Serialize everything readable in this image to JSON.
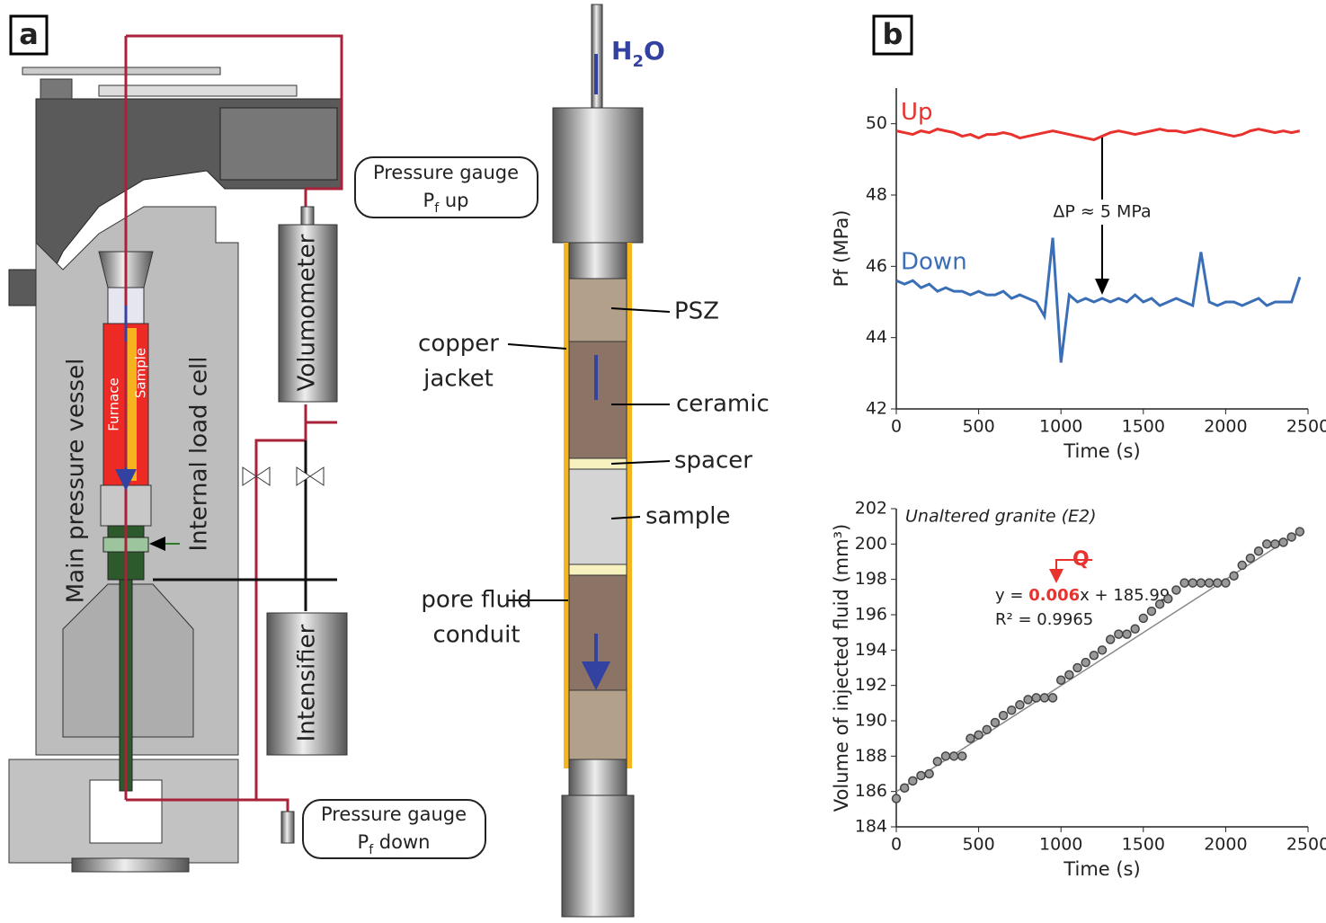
{
  "panels": {
    "a": "a",
    "b": "b"
  },
  "diagram": {
    "gauge_up": {
      "title": "Pressure gauge",
      "main": "P",
      "sub": "f",
      "rest": " up"
    },
    "gauge_down": {
      "title": "Pressure gauge",
      "main": "P",
      "sub": "f",
      "rest": " down"
    },
    "volumometer": "Volumometer",
    "intensifier": "Intensifier",
    "main_vessel": "Main pressure vessel",
    "load_cell": "Internal load cell",
    "furnace": "Furnace",
    "sample_small": "Sample",
    "water": {
      "main": "H",
      "sub": "2",
      "rest": "O"
    },
    "psz": "PSZ",
    "copper_jacket": [
      "copper",
      "jacket"
    ],
    "ceramic": "ceramic",
    "spacer": "spacer",
    "sample": "sample",
    "pore_fluid": [
      "pore fluid",
      "conduit"
    ]
  },
  "chart_data": [
    {
      "type": "line",
      "ylabel": "Pf (MPa)",
      "xlabel": "Time (s)",
      "annotation": "ΔP ≈ 5 MPa",
      "x": [
        0,
        50,
        100,
        150,
        200,
        250,
        300,
        350,
        400,
        450,
        500,
        550,
        600,
        650,
        700,
        750,
        800,
        850,
        900,
        950,
        1000,
        1050,
        1100,
        1150,
        1200,
        1250,
        1300,
        1350,
        1400,
        1450,
        1500,
        1550,
        1600,
        1650,
        1700,
        1750,
        1800,
        1850,
        1900,
        1950,
        2000,
        2050,
        2100,
        2150,
        2200,
        2250,
        2300,
        2350,
        2400,
        2450
      ],
      "series": [
        {
          "name": "Up",
          "color": "#e8322e",
          "values": [
            49.8,
            49.75,
            49.7,
            49.8,
            49.75,
            49.85,
            49.8,
            49.75,
            49.65,
            49.7,
            49.6,
            49.7,
            49.7,
            49.75,
            49.7,
            49.6,
            49.65,
            49.7,
            49.75,
            49.8,
            49.75,
            49.7,
            49.65,
            49.6,
            49.55,
            49.65,
            49.75,
            49.8,
            49.75,
            49.7,
            49.75,
            49.8,
            49.85,
            49.8,
            49.8,
            49.75,
            49.8,
            49.85,
            49.8,
            49.75,
            49.7,
            49.65,
            49.7,
            49.8,
            49.85,
            49.8,
            49.75,
            49.8,
            49.75,
            49.8
          ]
        },
        {
          "name": "Down",
          "color": "#3a6fb7",
          "values": [
            45.6,
            45.5,
            45.6,
            45.4,
            45.5,
            45.3,
            45.4,
            45.3,
            45.3,
            45.2,
            45.3,
            45.2,
            45.2,
            45.3,
            45.1,
            45.2,
            45.1,
            45.0,
            44.6,
            46.8,
            43.3,
            45.2,
            45.0,
            45.1,
            45.0,
            45.1,
            45.0,
            45.1,
            45.0,
            45.2,
            45.0,
            45.1,
            44.9,
            45.0,
            45.1,
            45.0,
            44.9,
            46.4,
            45.0,
            44.9,
            45.0,
            45.0,
            44.9,
            45.0,
            45.1,
            44.9,
            45.0,
            45.0,
            45.0,
            45.7
          ]
        }
      ],
      "xlim": [
        0,
        2500
      ],
      "xticks": [
        0,
        500,
        1000,
        1500,
        2000,
        2500
      ],
      "ylim": [
        42,
        51
      ],
      "yticks": [
        42,
        44,
        46,
        48,
        50
      ]
    },
    {
      "type": "scatter",
      "ylabel": "Volume of injected fluid (mm³)",
      "xlabel": "Time (s)",
      "annotation": "Unaltered granite (E2)",
      "q_label": "Q",
      "color": "#444444",
      "x": [
        0,
        50,
        100,
        150,
        200,
        250,
        300,
        350,
        400,
        450,
        500,
        550,
        600,
        650,
        700,
        750,
        800,
        850,
        900,
        950,
        1000,
        1050,
        1100,
        1150,
        1200,
        1250,
        1300,
        1350,
        1400,
        1450,
        1500,
        1550,
        1600,
        1650,
        1700,
        1750,
        1800,
        1850,
        1900,
        1950,
        2000,
        2050,
        2100,
        2150,
        2200,
        2250,
        2300,
        2350,
        2400,
        2450
      ],
      "values": [
        185.6,
        186.2,
        186.6,
        186.9,
        187.0,
        187.7,
        188.0,
        188.0,
        188.0,
        189.0,
        189.2,
        189.5,
        189.9,
        190.3,
        190.6,
        190.9,
        191.2,
        191.3,
        191.3,
        191.3,
        192.3,
        192.6,
        193.0,
        193.3,
        193.7,
        194.0,
        194.6,
        194.9,
        194.9,
        195.2,
        195.8,
        196.2,
        196.6,
        196.9,
        197.4,
        197.8,
        197.8,
        197.8,
        197.8,
        197.8,
        197.8,
        198.2,
        198.8,
        199.2,
        199.6,
        200.0,
        200.0,
        200.1,
        200.4,
        200.7
      ],
      "trendline": {
        "slope": 0.006,
        "intercept": 185.99,
        "equation_parts": [
          "y = ",
          "x + "
        ],
        "r2_label": "R² = 0.9965"
      },
      "xlim": [
        0,
        2500
      ],
      "xticks": [
        0,
        500,
        1000,
        1500,
        2000,
        2500
      ],
      "ylim": [
        184,
        202
      ],
      "yticks": [
        184,
        186,
        188,
        190,
        192,
        194,
        196,
        198,
        200,
        202
      ]
    }
  ]
}
